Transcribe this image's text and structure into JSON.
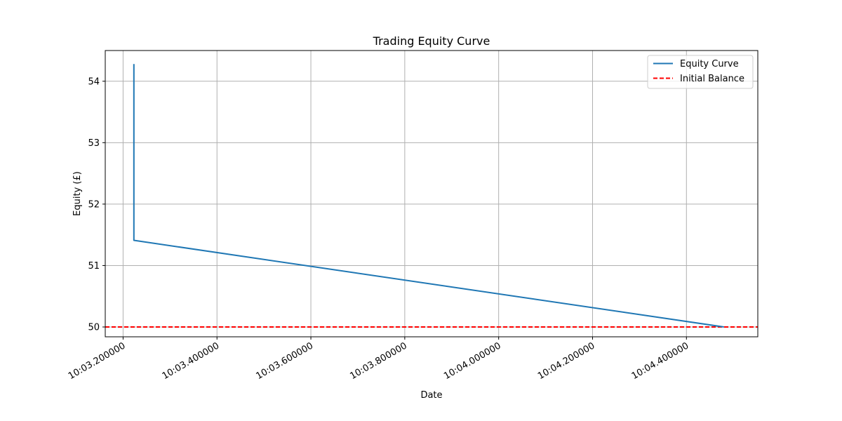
{
  "chart_data": {
    "type": "line",
    "title": "Trading Equity Curve",
    "xlabel": "Date",
    "ylabel": "Equity (£)",
    "xlim": [
      "10:03.162000",
      "10:04.552000"
    ],
    "ylim": [
      49.84,
      54.5
    ],
    "grid": true,
    "legend_position": "top-right",
    "x_ticks": [
      "10:03.200000",
      "10:03.400000",
      "10:03.600000",
      "10:03.800000",
      "10:04.000000",
      "10:04.200000",
      "10:04.400000"
    ],
    "y_ticks": [
      50,
      51,
      52,
      53,
      54
    ],
    "series": [
      {
        "name": "Equity Curve",
        "color": "#1f77b4",
        "style": "solid",
        "x": [
          "10:03.223000",
          "10:03.223000",
          "10:04.480000"
        ],
        "y": [
          54.28,
          51.41,
          50.0
        ]
      }
    ],
    "hlines": [
      {
        "name": "Initial Balance",
        "y": 50.0,
        "color": "#ff0000",
        "style": "dashed"
      }
    ]
  }
}
